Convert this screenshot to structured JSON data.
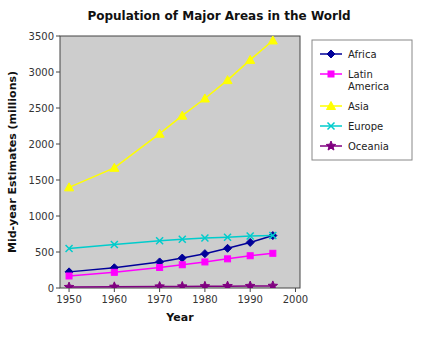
{
  "chart_data": {
    "type": "line",
    "title": "Population of Major Areas in the World",
    "xlabel": "Year",
    "ylabel": "Mid-year Estimates (millions)",
    "x": [
      1950,
      1960,
      1970,
      1975,
      1980,
      1985,
      1990,
      1995
    ],
    "series": [
      {
        "name": "Africa",
        "color": "#000099",
        "marker": "diamond",
        "values": [
          224,
          281,
          362,
          416,
          477,
          551,
          633,
          728
        ]
      },
      {
        "name": "Latin\nAmerica",
        "color": "#FF00FF",
        "marker": "square",
        "values": [
          167,
          218,
          285,
          323,
          362,
          405,
          448,
          482
        ]
      },
      {
        "name": "Asia",
        "color": "#FFFF00",
        "marker": "triangle",
        "values": [
          1398,
          1669,
          2143,
          2394,
          2632,
          2887,
          3168,
          3438
        ]
      },
      {
        "name": "Europe",
        "color": "#00CCCC",
        "marker": "x",
        "values": [
          549,
          605,
          656,
          676,
          694,
          706,
          722,
          728
        ]
      },
      {
        "name": "Oceania",
        "color": "#800080",
        "marker": "star",
        "values": [
          13,
          16,
          20,
          21,
          23,
          26,
          27,
          29
        ]
      }
    ],
    "xlim": [
      1948,
      2001
    ],
    "ylim": [
      0,
      3500
    ],
    "xticks": [
      1950,
      1960,
      1970,
      1980,
      1990,
      2000
    ],
    "yticks": [
      0,
      500,
      1000,
      1500,
      2000,
      2500,
      3000,
      3500
    ],
    "grid": false,
    "legend": "right"
  }
}
